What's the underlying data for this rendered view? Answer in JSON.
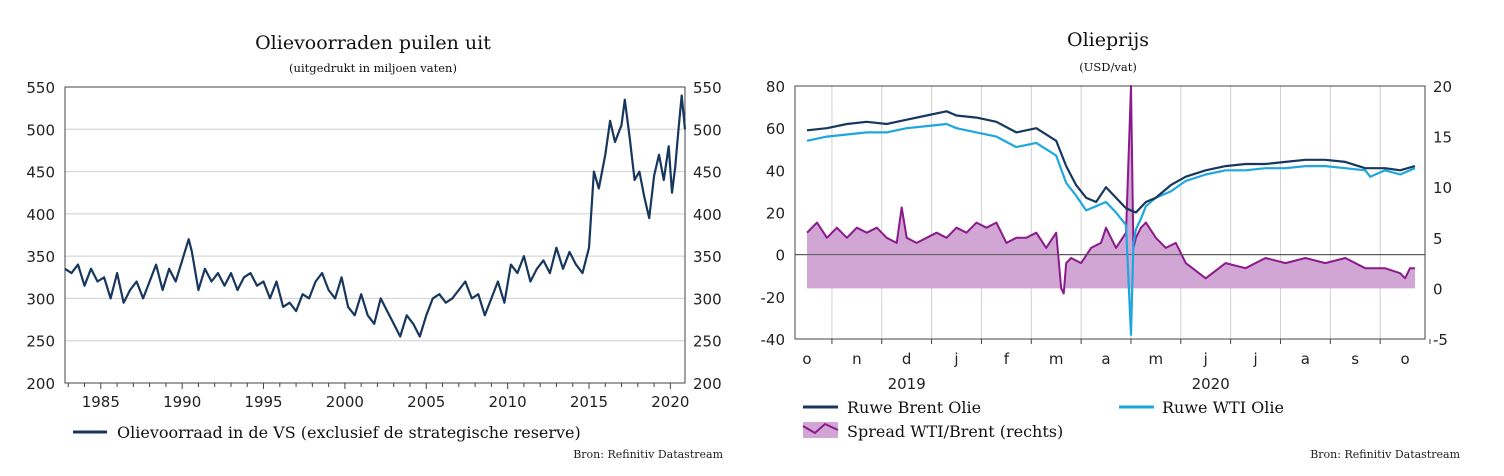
{
  "chart_data": [
    {
      "type": "line",
      "title": "Olievoorraden puilen uit",
      "subtitle": "(uitgedrukt in miljoen vaten)",
      "x_ticks": [
        "1985",
        "1990",
        "1995",
        "2000",
        "2005",
        "2010",
        "2015",
        "2020"
      ],
      "xlim": [
        1982.8,
        2020.9
      ],
      "ylim": [
        200,
        550
      ],
      "y_ticks": [
        "200",
        "250",
        "300",
        "350",
        "400",
        "450",
        "500",
        "550"
      ],
      "y_ticks_right": [
        "200",
        "250",
        "300",
        "350",
        "400",
        "450",
        "500",
        "550"
      ],
      "grid": "horizontal",
      "legend_position": "bottom",
      "series": [
        {
          "name": "Olievoorraad in de VS (exclusief de strategische reserve)",
          "color": "#17375e",
          "x": [
            1982.8,
            1983.2,
            1983.6,
            1984.0,
            1984.4,
            1984.8,
            1985.2,
            1985.6,
            1986.0,
            1986.4,
            1986.8,
            1987.2,
            1987.6,
            1988.0,
            1988.4,
            1988.8,
            1989.2,
            1989.6,
            1990.0,
            1990.4,
            1990.6,
            1991.0,
            1991.4,
            1991.8,
            1992.2,
            1992.6,
            1993.0,
            1993.4,
            1993.8,
            1994.2,
            1994.6,
            1995.0,
            1995.4,
            1995.8,
            1996.2,
            1996.6,
            1997.0,
            1997.4,
            1997.8,
            1998.2,
            1998.6,
            1999.0,
            1999.4,
            1999.8,
            2000.2,
            2000.6,
            2001.0,
            2001.4,
            2001.8,
            2002.2,
            2002.6,
            2003.0,
            2003.4,
            2003.8,
            2004.2,
            2004.6,
            2005.0,
            2005.4,
            2005.8,
            2006.2,
            2006.6,
            2007.0,
            2007.4,
            2007.8,
            2008.2,
            2008.6,
            2009.0,
            2009.4,
            2009.8,
            2010.2,
            2010.6,
            2011.0,
            2011.4,
            2011.8,
            2012.2,
            2012.6,
            2013.0,
            2013.4,
            2013.8,
            2014.2,
            2014.6,
            2015.0,
            2015.3,
            2015.6,
            2016.0,
            2016.3,
            2016.6,
            2017.0,
            2017.2,
            2017.5,
            2017.8,
            2018.1,
            2018.4,
            2018.7,
            2019.0,
            2019.3,
            2019.6,
            2019.9,
            2020.1,
            2020.3,
            2020.5,
            2020.7,
            2020.9
          ],
          "values": [
            335,
            330,
            340,
            315,
            335,
            320,
            325,
            300,
            330,
            295,
            310,
            320,
            300,
            320,
            340,
            310,
            335,
            320,
            345,
            370,
            355,
            310,
            335,
            320,
            330,
            315,
            330,
            310,
            325,
            330,
            315,
            320,
            300,
            320,
            290,
            295,
            285,
            305,
            300,
            320,
            330,
            310,
            300,
            325,
            290,
            280,
            305,
            280,
            270,
            300,
            285,
            270,
            255,
            280,
            270,
            255,
            280,
            300,
            305,
            295,
            300,
            310,
            320,
            300,
            305,
            280,
            300,
            320,
            295,
            340,
            330,
            350,
            320,
            335,
            345,
            330,
            360,
            335,
            355,
            340,
            330,
            360,
            450,
            430,
            470,
            510,
            485,
            505,
            535,
            490,
            440,
            450,
            420,
            395,
            445,
            470,
            440,
            480,
            425,
            455,
            500,
            540,
            500
          ]
        }
      ]
    },
    {
      "type": "line",
      "title": "Olieprijs",
      "subtitle": "(USD/vat)",
      "x_ticks": [
        "o",
        "n",
        "d",
        "j",
        "f",
        "m",
        "a",
        "m",
        "j",
        "j",
        "a",
        "s",
        "o"
      ],
      "x_year_labels": [
        "2019",
        "2020"
      ],
      "xlim": [
        0,
        12.4
      ],
      "ylim": [
        -40,
        80
      ],
      "y_ticks": [
        "-40",
        "-20",
        "0",
        "20",
        "40",
        "60",
        "80"
      ],
      "ylim_right": [
        -5,
        20
      ],
      "y_ticks_right": [
        "-5",
        "0",
        "5",
        "10",
        "15",
        "20"
      ],
      "grid": "vertical",
      "legend_position": "bottom",
      "series": [
        {
          "name": "Ruwe Brent Olie",
          "color": "#17375e",
          "axis": "left",
          "x": [
            0,
            0.4,
            0.8,
            1.2,
            1.6,
            2.0,
            2.4,
            2.8,
            3.0,
            3.4,
            3.8,
            4.2,
            4.6,
            5.0,
            5.2,
            5.4,
            5.6,
            5.8,
            6.0,
            6.2,
            6.4,
            6.6,
            6.8,
            7.0,
            7.3,
            7.6,
            8.0,
            8.4,
            8.8,
            9.2,
            9.6,
            10.0,
            10.4,
            10.8,
            11.2,
            11.6,
            11.9,
            12.2
          ],
          "values": [
            59,
            60,
            62,
            63,
            62,
            64,
            66,
            68,
            66,
            65,
            63,
            58,
            60,
            54,
            42,
            33,
            27,
            25,
            32,
            27,
            22,
            20,
            25,
            27,
            33,
            37,
            40,
            42,
            43,
            43,
            44,
            45,
            45,
            44,
            41,
            41,
            40,
            42
          ]
        },
        {
          "name": "Ruwe WTI Olie",
          "color": "#1ea7df",
          "axis": "left",
          "x": [
            0,
            0.4,
            0.8,
            1.2,
            1.6,
            2.0,
            2.4,
            2.8,
            3.0,
            3.4,
            3.8,
            4.2,
            4.6,
            5.0,
            5.2,
            5.4,
            5.6,
            5.8,
            6.0,
            6.2,
            6.4,
            6.5,
            6.55,
            6.6,
            6.7,
            6.8,
            7.0,
            7.3,
            7.6,
            8.0,
            8.4,
            8.8,
            9.2,
            9.6,
            10.0,
            10.4,
            10.8,
            11.2,
            11.3,
            11.6,
            11.9,
            12.2
          ],
          "values": [
            54,
            56,
            57,
            58,
            58,
            60,
            61,
            62,
            60,
            58,
            56,
            51,
            53,
            47,
            34,
            28,
            21,
            23,
            25,
            20,
            14,
            -38,
            5,
            12,
            17,
            23,
            27,
            30,
            35,
            38,
            40,
            40,
            41,
            41,
            42,
            42,
            41,
            40,
            37,
            40,
            38,
            41
          ]
        },
        {
          "name": "Spread WTI/Brent (rechts)",
          "color": "#8b1a8b",
          "fill": "#d1a6d4",
          "axis": "right",
          "x": [
            0,
            0.2,
            0.4,
            0.6,
            0.8,
            1.0,
            1.2,
            1.4,
            1.6,
            1.8,
            1.9,
            2.0,
            2.2,
            2.4,
            2.6,
            2.8,
            3.0,
            3.2,
            3.4,
            3.6,
            3.8,
            4.0,
            4.2,
            4.4,
            4.6,
            4.8,
            5.0,
            5.1,
            5.15,
            5.2,
            5.3,
            5.5,
            5.7,
            5.9,
            6.0,
            6.2,
            6.4,
            6.5,
            6.55,
            6.6,
            6.7,
            6.8,
            7.0,
            7.2,
            7.4,
            7.6,
            8.0,
            8.4,
            8.8,
            9.2,
            9.6,
            10.0,
            10.4,
            10.8,
            11.2,
            11.6,
            11.9,
            12.0,
            12.1,
            12.2
          ],
          "values": [
            5.5,
            6.5,
            5,
            6,
            5,
            6,
            5.5,
            6,
            5,
            4.5,
            8,
            5,
            4.5,
            5,
            5.5,
            5,
            6,
            5.5,
            6.5,
            6,
            6.5,
            4.5,
            5,
            5,
            5.5,
            4,
            5.5,
            0,
            -0.5,
            2.5,
            3,
            2.5,
            4,
            4.5,
            6,
            4,
            5.5,
            20,
            4,
            5,
            6,
            6.5,
            5,
            4,
            4.5,
            2.5,
            1,
            2.5,
            2,
            3,
            2.5,
            3,
            2.5,
            3,
            2,
            2,
            1.5,
            1,
            2,
            2
          ]
        }
      ]
    }
  ],
  "source_left": "Bron: Refinitiv Datastream",
  "source_right": "Bron: Refinitiv Datastream"
}
